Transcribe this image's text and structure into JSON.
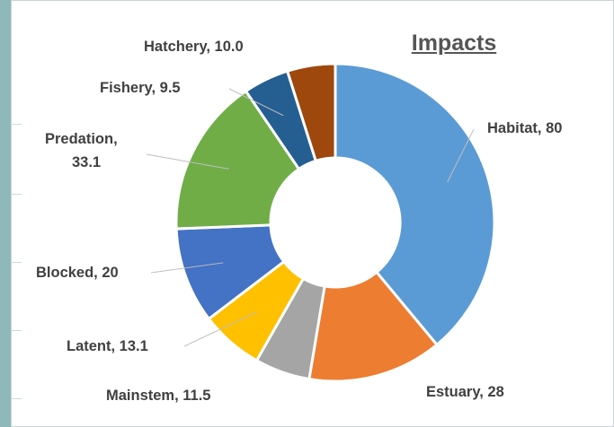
{
  "chart_data": {
    "type": "donut",
    "title": "Impacts",
    "slices": [
      {
        "label": "Habitat, 80",
        "value": 80,
        "color": "#5b9bd5"
      },
      {
        "label": "Estuary, 28",
        "value": 28,
        "color": "#ed7d31"
      },
      {
        "label": "Mainstem, 11.5",
        "value": 11.5,
        "color": "#a5a5a5"
      },
      {
        "label": "Latent, 13.1",
        "value": 13.1,
        "color": "#ffc000"
      },
      {
        "label": "Blocked, 20",
        "value": 20,
        "color": "#4472c4"
      },
      {
        "label": "Predation,\n33.1",
        "value": 33.1,
        "color": "#70ad47"
      },
      {
        "label": "Fishery, 9.5",
        "value": 9.5,
        "color": "#255e91"
      },
      {
        "label": "Hatchery, 10.0",
        "value": 10.0,
        "color": "#9e480e"
      }
    ]
  }
}
